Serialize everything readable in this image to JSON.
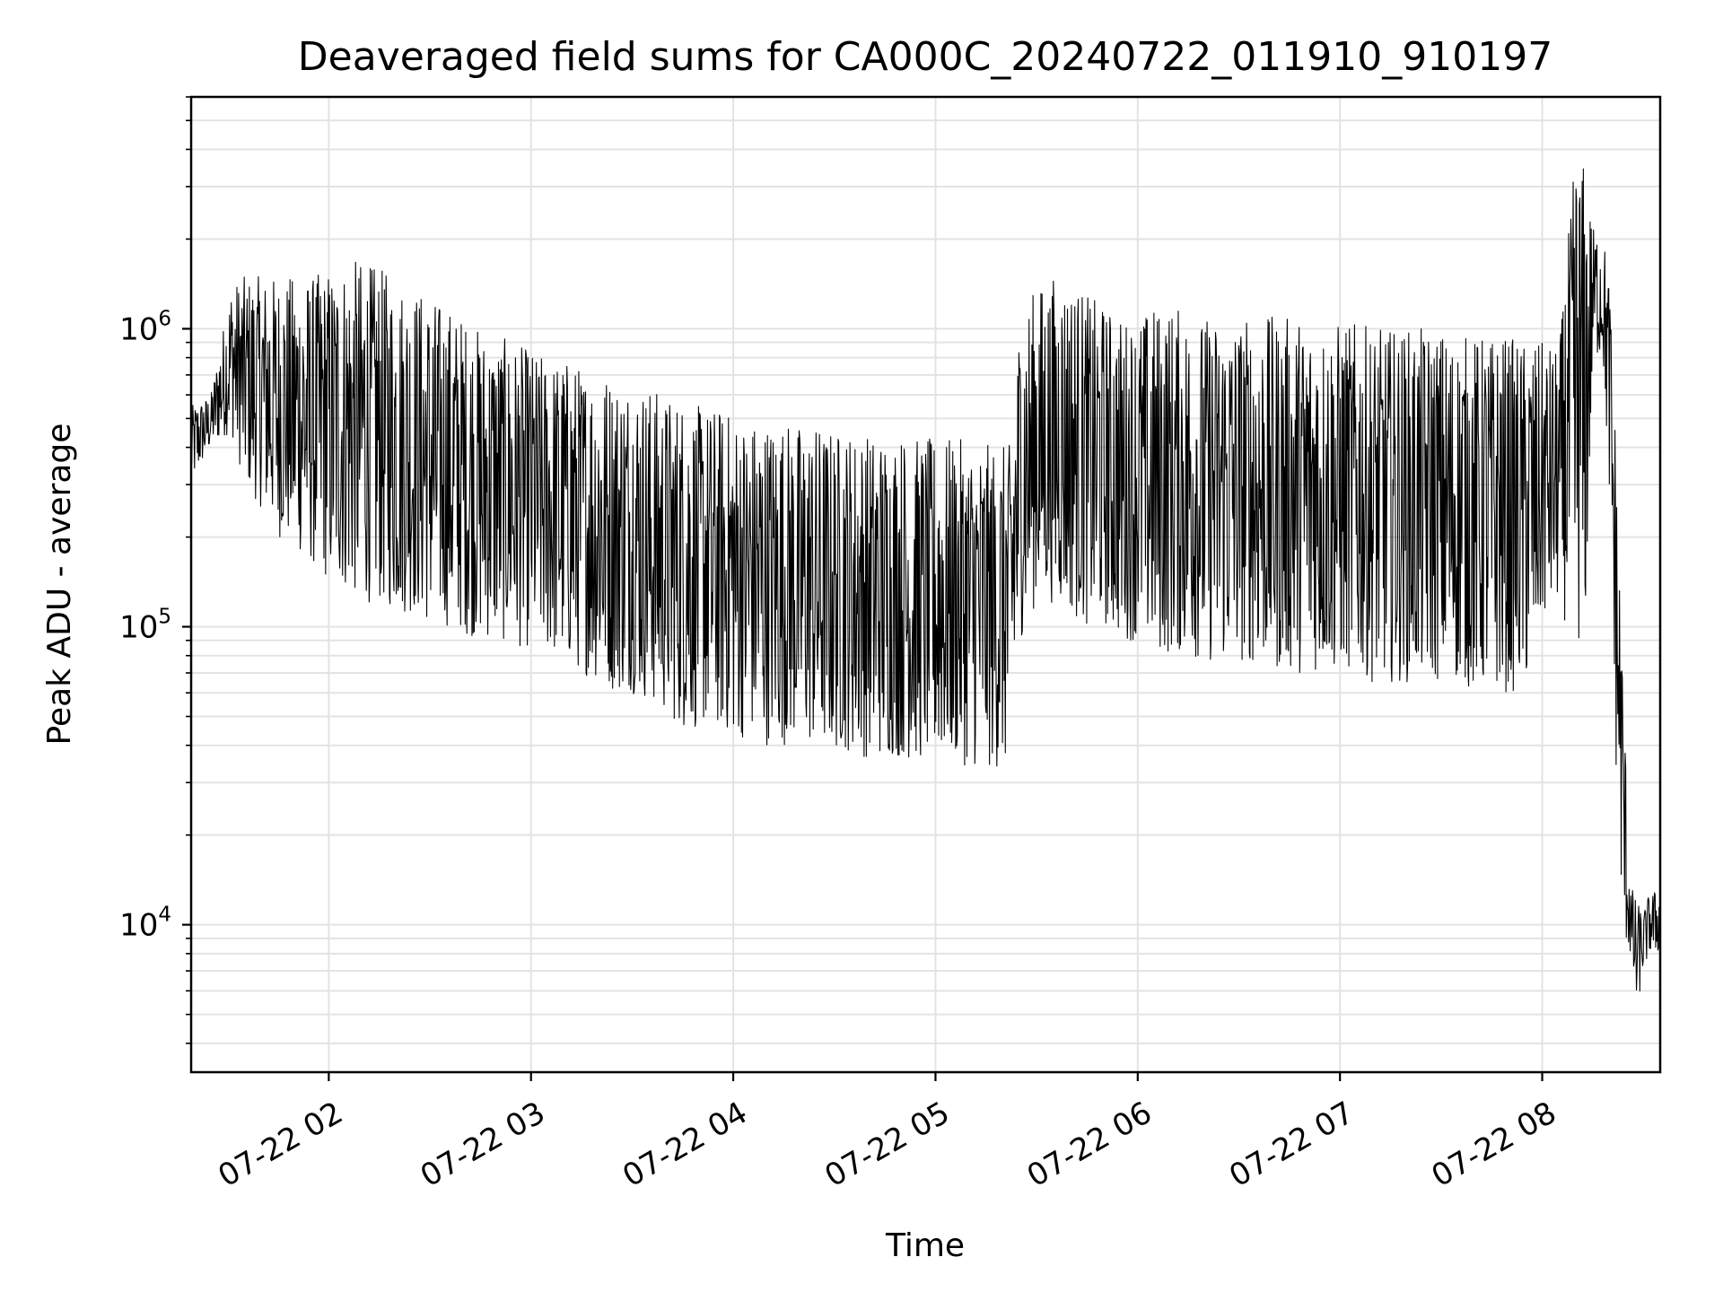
{
  "chart_data": {
    "type": "line",
    "title": "Deaveraged field sums for CA000C_20240722_011910_910197",
    "xlabel": "Time",
    "ylabel": "Peak ADU - average",
    "yscale": "log",
    "ylim": [
      3200,
      6000000
    ],
    "xlim": [
      "2024-07-22T01:19:10",
      "2024-07-22T08:35:00"
    ],
    "grid": true,
    "line_color": "#000000",
    "x_ticks": [
      {
        "label": "07-22 02",
        "value": "2024-07-22T02:00:00"
      },
      {
        "label": "07-22 03",
        "value": "2024-07-22T03:00:00"
      },
      {
        "label": "07-22 04",
        "value": "2024-07-22T04:00:00"
      },
      {
        "label": "07-22 05",
        "value": "2024-07-22T05:00:00"
      },
      {
        "label": "07-22 06",
        "value": "2024-07-22T06:00:00"
      },
      {
        "label": "07-22 07",
        "value": "2024-07-22T07:00:00"
      },
      {
        "label": "07-22 08",
        "value": "2024-07-22T08:00:00"
      }
    ],
    "y_ticks": [
      {
        "base": "10",
        "exp": "4",
        "value": 10000
      },
      {
        "base": "10",
        "exp": "5",
        "value": 100000
      },
      {
        "base": "10",
        "exp": "6",
        "value": 1000000
      }
    ],
    "series": [
      {
        "x": [
          "2024-07-22T01:19:10",
          "2024-07-22T01:25:00",
          "2024-07-22T01:31:00",
          "2024-07-22T01:35:00",
          "2024-07-22T01:40:00",
          "2024-07-22T01:45:00",
          "2024-07-22T01:50:00",
          "2024-07-22T01:55:00",
          "2024-07-22T02:00:00",
          "2024-07-22T02:05:00",
          "2024-07-22T02:10:00",
          "2024-07-22T02:15:00",
          "2024-07-22T02:20:00",
          "2024-07-22T02:25:00",
          "2024-07-22T02:30:00",
          "2024-07-22T02:35:00",
          "2024-07-22T02:40:00",
          "2024-07-22T02:45:00",
          "2024-07-22T02:50:00",
          "2024-07-22T02:55:00",
          "2024-07-22T03:00:00",
          "2024-07-22T03:05:00",
          "2024-07-22T03:10:00",
          "2024-07-22T03:15:00",
          "2024-07-22T03:20:00",
          "2024-07-22T03:25:00",
          "2024-07-22T03:30:00",
          "2024-07-22T03:35:00",
          "2024-07-22T03:40:00",
          "2024-07-22T03:45:00",
          "2024-07-22T03:50:00",
          "2024-07-22T03:55:00",
          "2024-07-22T04:00:00",
          "2024-07-22T04:05:00",
          "2024-07-22T04:10:00",
          "2024-07-22T04:15:00",
          "2024-07-22T04:20:00",
          "2024-07-22T04:25:00",
          "2024-07-22T04:30:00",
          "2024-07-22T04:35:00",
          "2024-07-22T04:40:00",
          "2024-07-22T04:45:00",
          "2024-07-22T04:50:00",
          "2024-07-22T04:55:00",
          "2024-07-22T05:00:00",
          "2024-07-22T05:05:00",
          "2024-07-22T05:10:00",
          "2024-07-22T05:15:00",
          "2024-07-22T05:20:00",
          "2024-07-22T05:22:00",
          "2024-07-22T05:25:00",
          "2024-07-22T05:30:00",
          "2024-07-22T05:35:00",
          "2024-07-22T05:40:00",
          "2024-07-22T05:45:00",
          "2024-07-22T05:50:00",
          "2024-07-22T05:55:00",
          "2024-07-22T06:00:00",
          "2024-07-22T06:05:00",
          "2024-07-22T06:10:00",
          "2024-07-22T06:15:00",
          "2024-07-22T06:20:00",
          "2024-07-22T06:25:00",
          "2024-07-22T06:30:00",
          "2024-07-22T06:35:00",
          "2024-07-22T06:40:00",
          "2024-07-22T06:45:00",
          "2024-07-22T06:50:00",
          "2024-07-22T06:55:00",
          "2024-07-22T07:00:00",
          "2024-07-22T07:05:00",
          "2024-07-22T07:10:00",
          "2024-07-22T07:15:00",
          "2024-07-22T07:20:00",
          "2024-07-22T07:25:00",
          "2024-07-22T07:30:00",
          "2024-07-22T07:35:00",
          "2024-07-22T07:40:00",
          "2024-07-22T07:45:00",
          "2024-07-22T07:50:00",
          "2024-07-22T07:55:00",
          "2024-07-22T08:00:00",
          "2024-07-22T08:05:00",
          "2024-07-22T08:10:00",
          "2024-07-22T08:13:00",
          "2024-07-22T08:15:00",
          "2024-07-22T08:18:00",
          "2024-07-22T08:20:00",
          "2024-07-22T08:22:00",
          "2024-07-22T08:24:00",
          "2024-07-22T08:26:00",
          "2024-07-22T08:28:00",
          "2024-07-22T08:30:00",
          "2024-07-22T08:32:00",
          "2024-07-22T08:35:00"
        ],
        "low": [
          300000,
          400000,
          450000,
          300000,
          250000,
          200000,
          180000,
          160000,
          140000,
          130000,
          120000,
          120000,
          110000,
          110000,
          100000,
          100000,
          95000,
          90000,
          90000,
          85000,
          85000,
          80000,
          75000,
          70000,
          65000,
          60000,
          60000,
          55000,
          50000,
          45000,
          45000,
          45000,
          42000,
          42000,
          40000,
          40000,
          40000,
          38000,
          38000,
          38000,
          36000,
          36000,
          36000,
          35000,
          35000,
          35000,
          34000,
          33000,
          33000,
          33000,
          90000,
          120000,
          120000,
          110000,
          100000,
          100000,
          90000,
          90000,
          80000,
          80000,
          80000,
          75000,
          75000,
          75000,
          75000,
          70000,
          70000,
          70000,
          70000,
          70000,
          70000,
          65000,
          65000,
          65000,
          65000,
          65000,
          65000,
          60000,
          60000,
          60000,
          60000,
          100000,
          120000,
          80000,
          100000,
          800000,
          800000,
          250000,
          30000,
          9000,
          8000,
          5000,
          7000,
          8000,
          8000
        ],
        "high": [
          550000,
          600000,
          1400000,
          1500000,
          1500000,
          1500000,
          1500000,
          1500000,
          1600000,
          1700000,
          1700000,
          1600000,
          1500000,
          1400000,
          1300000,
          1200000,
          1100000,
          1000000,
          950000,
          900000,
          850000,
          800000,
          800000,
          750000,
          750000,
          700000,
          700000,
          650000,
          600000,
          600000,
          550000,
          550000,
          520000,
          500000,
          500000,
          500000,
          480000,
          480000,
          460000,
          460000,
          450000,
          450000,
          450000,
          430000,
          430000,
          430000,
          420000,
          410000,
          410000,
          410000,
          1100000,
          1400000,
          1500000,
          1500000,
          1300000,
          1200000,
          1100000,
          1100000,
          1200000,
          1200000,
          1150000,
          1100000,
          1100000,
          1100000,
          1100000,
          1100000,
          1100000,
          1100000,
          1050000,
          1050000,
          1050000,
          1000000,
          1000000,
          1000000,
          1000000,
          1000000,
          950000,
          950000,
          950000,
          950000,
          900000,
          900000,
          850000,
          4200000,
          3500000,
          2200000,
          2100000,
          1500000,
          400000,
          70000,
          14000,
          12000,
          11000,
          13000,
          13000
        ]
      }
    ]
  }
}
